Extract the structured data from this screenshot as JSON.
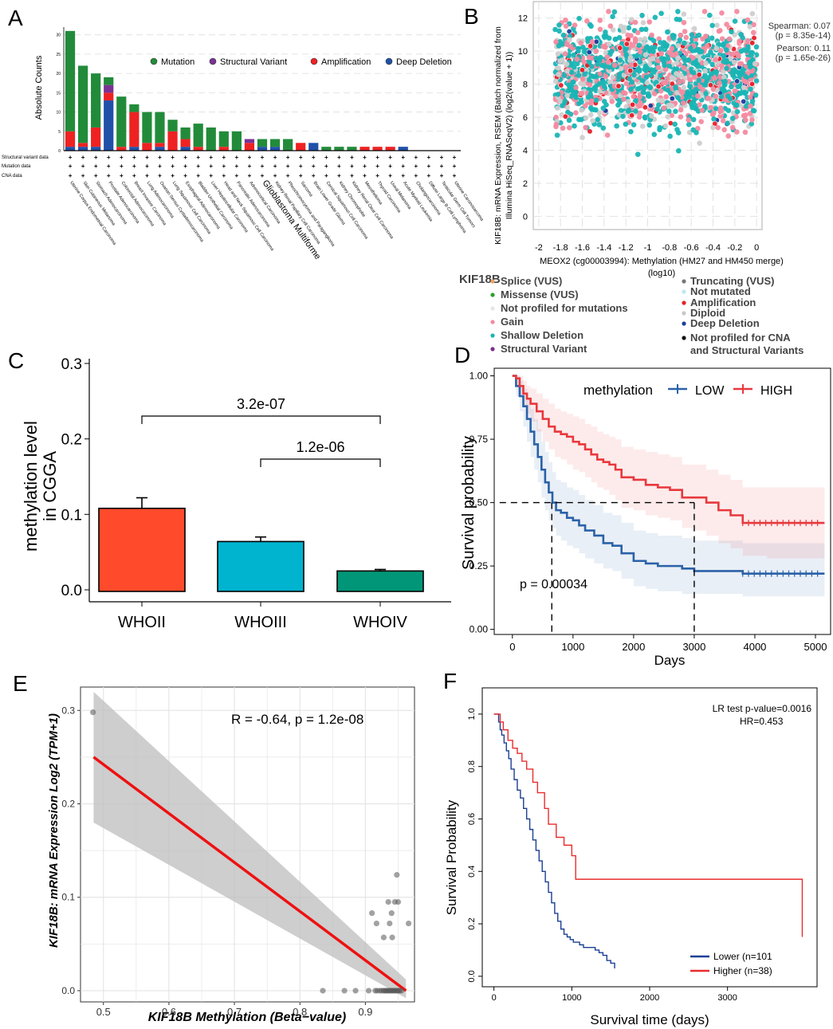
{
  "figure": {
    "panel_labels": {
      "A": "A",
      "B": "B",
      "C": "C",
      "D": "D",
      "E": "E",
      "F": "F"
    }
  },
  "panelA": {
    "chart_data": {
      "type": "bar",
      "stacked": true,
      "title": "",
      "ylabel": "Absolute Counts",
      "ylim": [
        0,
        32
      ],
      "yticks": [
        0,
        5,
        10,
        15,
        20,
        25,
        30
      ],
      "legend": [
        "Mutation",
        "Structural Variant",
        "Amplification",
        "Deep Deletion"
      ],
      "colors": {
        "Mutation": "#228b3a",
        "Structural Variant": "#7b3294",
        "Amplification": "#ee2222",
        "Deep Deletion": "#2050a8"
      },
      "row_labels": [
        "Structural variant data",
        "Mutation data",
        "CNA data"
      ],
      "highlight": "Glioblastoma Multiforme",
      "categories": [
        "Uterine Corpus Endometrial Carcinoma",
        "Skin Cutaneous Melanoma",
        "Stomach Adenocarcinoma",
        "Prostate Adenocarcinoma",
        "Colorectal Adenocarcinoma",
        "Breast Invasive Carcinoma",
        "Lung Adenocarcinoma",
        "Ovarian Serous Cystadenocarcinoma",
        "Lung Squamous Cell Carcinoma",
        "Esophageal Adenocarcinoma",
        "Bladder Urothelial Carcinoma",
        "Liver Hepatocellular Carcinoma",
        "Head and Neck Squamous Cell Carcinoma",
        "Pancreatic Adenocarcinoma",
        "Adrenocortical Carcinoma",
        "Glioblastoma Multiforme",
        "Kidney Renal Papillary Cell Carcinoma",
        "Pheochromocytoma and Paraganglioma",
        "Sarcoma",
        "Brain Lower Grade Glioma",
        "Cervical Squamous Cell Carcinoma",
        "Kidney Chromophobe",
        "Kidney Renal Clear Cell Carcinoma",
        "Mesothelioma",
        "Thyroid Carcinoma",
        "Uveal Melanoma",
        "Acute Myeloid Leukemia",
        "Cholangiocarcinoma",
        "Diffuse Large B-Cell Lymphoma",
        "Testicular Germ Cell Tumors",
        "Uterine Carcinosarcoma"
      ],
      "series": [
        {
          "name": "Deep Deletion",
          "values": [
            1,
            1,
            1,
            13,
            0,
            1,
            0,
            1,
            0,
            1,
            0,
            0,
            0,
            0,
            0,
            1,
            1,
            0,
            0,
            2,
            0,
            0,
            0,
            0,
            0,
            0,
            1,
            0,
            0,
            0,
            0
          ]
        },
        {
          "name": "Amplification",
          "values": [
            4,
            1,
            5,
            2,
            1,
            9,
            2,
            1,
            5,
            2,
            1,
            0,
            1,
            0,
            2,
            0,
            0,
            0,
            2,
            0,
            0,
            0,
            0,
            1,
            1,
            1,
            0,
            0,
            0,
            0,
            0
          ]
        },
        {
          "name": "Structural Variant",
          "values": [
            0,
            0,
            0,
            2,
            0,
            0,
            0,
            0,
            0,
            0,
            0,
            0,
            0,
            0,
            1,
            0,
            0,
            0,
            0,
            0,
            0,
            0,
            0,
            0,
            0,
            0,
            0,
            0,
            0,
            0,
            0
          ]
        },
        {
          "name": "Mutation",
          "values": [
            26,
            20,
            14,
            2,
            13,
            2,
            8,
            8,
            3,
            3,
            6,
            6,
            4,
            5,
            0,
            2,
            2,
            3,
            0,
            0,
            1,
            1,
            1,
            0,
            0,
            0,
            0,
            0,
            0,
            0,
            0
          ]
        }
      ]
    }
  },
  "panelB": {
    "chart_data": {
      "type": "scatter",
      "xlabel": "MEOX2 (cg00003994): Methylation (HM27 and HM450 merge) (log10)",
      "ylabel": "KIF18B: mRNA Expression, RSEM (Batch normalized from Illumina HiSeq_RNASeqV2) (log2(value + 1))",
      "xlim": [
        -2.05,
        0.05
      ],
      "ylim": [
        -0.8,
        13
      ],
      "xticks": [
        "-2",
        "-1.8",
        "-1.6",
        "-1.4",
        "-1.2",
        "-1",
        "-0.8",
        "-0.6",
        "-0.4",
        "-0.2",
        "0"
      ],
      "yticks": [
        "0",
        "2",
        "4",
        "6",
        "8",
        "10",
        "12"
      ],
      "stats": {
        "spearman": "Spearman: 0.07",
        "spearman_p": "(p = 8.35e-14)",
        "pearson": "Pearson: 0.11",
        "pearson_p": "(p = 1.65e-26)"
      },
      "note": "Dense scatter of thousands of samples between x≈-1.9 and 0 and y≈0 to 12.5, colored by KIF18B copy-number / mutation status."
    },
    "legend_title": "KIF18B",
    "legend_left": [
      "Splice (VUS)",
      "Missense (VUS)",
      "Not profiled for mutations",
      "Gain",
      "Shallow Deletion",
      "Structural Variant"
    ],
    "legend_right": [
      "Truncating (VUS)",
      "Not mutated",
      "Amplification",
      "Diploid",
      "Deep Deletion",
      "Not profiled for CNA",
      "and Structural Variants"
    ],
    "legend_left_colors": [
      "#e8a36a",
      "#2ca02c",
      "#e6e6e6",
      "#f48aa0",
      "#19b5b5",
      "#7b2f8e"
    ],
    "legend_right_colors": [
      "#777777",
      "#bfe8ee",
      "#e8202a",
      "#c8c8c8",
      "#1d3d9e",
      "#111111"
    ]
  },
  "panelC": {
    "chart_data": {
      "type": "bar",
      "ylabel": "methylation level in CGGA",
      "categories": [
        "WHOII",
        "WHOIII",
        "WHOIV"
      ],
      "values": [
        0.108,
        0.064,
        0.025
      ],
      "errors": [
        0.014,
        0.006,
        0.002
      ],
      "ylim": [
        -0.005,
        0.3
      ],
      "yticks": [
        "0.0",
        "0.1",
        "0.2",
        "0.3"
      ],
      "colors": [
        "#ff4b2b",
        "#00b3cf",
        "#009677"
      ],
      "comparisons": [
        {
          "from": "WHOII",
          "to": "WHOIV",
          "label": "3.2e-07"
        },
        {
          "from": "WHOIII",
          "to": "WHOIV",
          "label": "1.2e-06"
        }
      ]
    }
  },
  "panelD": {
    "chart_data": {
      "type": "line",
      "xlabel": "Days",
      "ylabel": "Survival probability",
      "xlim": [
        -300,
        5250
      ],
      "ylim": [
        -0.02,
        1.03
      ],
      "xticks": [
        "0",
        "1000",
        "2000",
        "3000",
        "4000",
        "5000"
      ],
      "yticks": [
        "0.00",
        "0.25",
        "0.50",
        "0.75",
        "1.00"
      ],
      "legend_title": "methylation",
      "pvalue": "p = 0.00034",
      "median_lines": [
        650,
        3000
      ],
      "series": [
        {
          "name": "LOW",
          "color": "#2a62a8",
          "x": [
            0,
            60,
            120,
            180,
            240,
            300,
            360,
            420,
            480,
            540,
            600,
            660,
            720,
            800,
            900,
            1000,
            1100,
            1200,
            1350,
            1500,
            1650,
            1800,
            2000,
            2200,
            2400,
            2600,
            2800,
            3000,
            3200,
            3500,
            3800,
            4200,
            4600,
            5150
          ],
          "y": [
            1.0,
            0.96,
            0.92,
            0.88,
            0.83,
            0.78,
            0.73,
            0.68,
            0.63,
            0.58,
            0.54,
            0.5,
            0.47,
            0.46,
            0.44,
            0.43,
            0.41,
            0.39,
            0.37,
            0.34,
            0.33,
            0.3,
            0.27,
            0.26,
            0.25,
            0.25,
            0.24,
            0.23,
            0.23,
            0.23,
            0.22,
            0.22,
            0.22,
            0.22
          ],
          "ci_lower": [
            1.0,
            0.92,
            0.86,
            0.8,
            0.74,
            0.68,
            0.63,
            0.58,
            0.52,
            0.47,
            0.43,
            0.4,
            0.37,
            0.35,
            0.33,
            0.32,
            0.3,
            0.28,
            0.26,
            0.24,
            0.23,
            0.2,
            0.17,
            0.16,
            0.15,
            0.15,
            0.14,
            0.14,
            0.14,
            0.14,
            0.13,
            0.13,
            0.13,
            0.13
          ],
          "ci_upper": [
            1.0,
            1.0,
            0.98,
            0.95,
            0.91,
            0.87,
            0.83,
            0.79,
            0.74,
            0.7,
            0.66,
            0.62,
            0.59,
            0.58,
            0.56,
            0.55,
            0.53,
            0.51,
            0.49,
            0.46,
            0.45,
            0.42,
            0.39,
            0.38,
            0.37,
            0.37,
            0.36,
            0.35,
            0.35,
            0.35,
            0.34,
            0.34,
            0.34,
            0.34
          ]
        },
        {
          "name": "HIGH",
          "color": "#e8383d",
          "x": [
            0,
            60,
            120,
            180,
            240,
            300,
            400,
            500,
            600,
            700,
            800,
            900,
            1000,
            1100,
            1200,
            1300,
            1400,
            1500,
            1600,
            1700,
            1800,
            1900,
            2000,
            2200,
            2400,
            2600,
            2800,
            3000,
            3200,
            3400,
            3600,
            3800,
            4200,
            4600,
            5150
          ],
          "y": [
            1.0,
            0.99,
            0.96,
            0.93,
            0.91,
            0.89,
            0.86,
            0.83,
            0.8,
            0.78,
            0.77,
            0.76,
            0.74,
            0.73,
            0.71,
            0.69,
            0.67,
            0.66,
            0.65,
            0.63,
            0.6,
            0.6,
            0.59,
            0.57,
            0.56,
            0.55,
            0.52,
            0.52,
            0.5,
            0.47,
            0.45,
            0.42,
            0.42,
            0.42,
            0.42
          ],
          "ci_lower": [
            1.0,
            0.96,
            0.92,
            0.88,
            0.85,
            0.82,
            0.78,
            0.74,
            0.71,
            0.68,
            0.67,
            0.65,
            0.63,
            0.62,
            0.6,
            0.58,
            0.56,
            0.55,
            0.53,
            0.51,
            0.48,
            0.48,
            0.47,
            0.45,
            0.44,
            0.43,
            0.4,
            0.39,
            0.37,
            0.34,
            0.32,
            0.29,
            0.28,
            0.28,
            0.28
          ],
          "ci_upper": [
            1.0,
            1.0,
            1.0,
            0.98,
            0.96,
            0.95,
            0.93,
            0.91,
            0.89,
            0.87,
            0.86,
            0.85,
            0.84,
            0.83,
            0.81,
            0.8,
            0.78,
            0.77,
            0.76,
            0.75,
            0.72,
            0.72,
            0.71,
            0.7,
            0.69,
            0.68,
            0.65,
            0.65,
            0.63,
            0.61,
            0.59,
            0.56,
            0.56,
            0.56,
            0.56
          ]
        }
      ]
    }
  },
  "panelE": {
    "chart_data": {
      "type": "scatter",
      "xlabel": "KIF18B Methylation (Beta−value)",
      "ylabel": "KIF18B: mRNA Expression Log2 (TPM+1)",
      "xlim": [
        0.465,
        0.975
      ],
      "ylim": [
        -0.012,
        0.325
      ],
      "xticks": [
        "0.5",
        "0.6",
        "0.7",
        "0.8",
        "0.9"
      ],
      "yticks": [
        "0.0",
        "0.1",
        "0.2",
        "0.3"
      ],
      "annotation": "R = -0.64, p = 1.2e-08",
      "fit": {
        "x": [
          0.485,
          0.962
        ],
        "y": [
          0.25,
          0.0
        ]
      },
      "ci_band": {
        "x": [
          0.485,
          0.962
        ],
        "upper": [
          0.32,
          0.012
        ],
        "lower": [
          0.18,
          -0.008
        ]
      },
      "points": [
        [
          0.484,
          0.298
        ],
        [
          0.835,
          0.0
        ],
        [
          0.868,
          0.0
        ],
        [
          0.885,
          0.0
        ],
        [
          0.905,
          0.0
        ],
        [
          0.915,
          0.0
        ],
        [
          0.918,
          0.0
        ],
        [
          0.922,
          0.0
        ],
        [
          0.925,
          0.0
        ],
        [
          0.928,
          0.0
        ],
        [
          0.93,
          0.0
        ],
        [
          0.932,
          0.0
        ],
        [
          0.934,
          0.0
        ],
        [
          0.936,
          0.0
        ],
        [
          0.938,
          0.0
        ],
        [
          0.94,
          0.0
        ],
        [
          0.942,
          0.0
        ],
        [
          0.944,
          0.0
        ],
        [
          0.946,
          0.0
        ],
        [
          0.948,
          0.0
        ],
        [
          0.95,
          0.0
        ],
        [
          0.952,
          0.0
        ],
        [
          0.955,
          0.0
        ],
        [
          0.948,
          0.124
        ],
        [
          0.935,
          0.095
        ],
        [
          0.945,
          0.095
        ],
        [
          0.95,
          0.095
        ],
        [
          0.91,
          0.083
        ],
        [
          0.94,
          0.083
        ],
        [
          0.917,
          0.072
        ],
        [
          0.937,
          0.072
        ],
        [
          0.966,
          0.072
        ],
        [
          0.928,
          0.057
        ],
        [
          0.941,
          0.057
        ]
      ]
    }
  },
  "panelF": {
    "chart_data": {
      "type": "line",
      "xlabel": "Survival time (days)",
      "ylabel": "Survival Probability",
      "xlim": [
        -150,
        4150
      ],
      "ylim": [
        -0.04,
        1.1
      ],
      "xticks": [
        "0",
        "1000",
        "2000",
        "3000"
      ],
      "yticks": [
        "0.0",
        "0.2",
        "0.4",
        "0.6",
        "0.8",
        "1.0"
      ],
      "stats": {
        "lr": "LR test p-value=0.0016",
        "hr": "HR=0.453"
      },
      "series": [
        {
          "name": "Lower (n=101",
          "color": "#1a3f94",
          "x": [
            0,
            40,
            60,
            80,
            100,
            130,
            160,
            190,
            220,
            260,
            300,
            340,
            380,
            420,
            460,
            500,
            540,
            580,
            620,
            660,
            700,
            740,
            780,
            820,
            860,
            900,
            940,
            980,
            1020,
            1060,
            1100,
            1150,
            1200,
            1300,
            1350,
            1400,
            1450,
            1500,
            1550
          ],
          "y": [
            1.0,
            1.0,
            0.97,
            0.94,
            0.92,
            0.89,
            0.86,
            0.83,
            0.79,
            0.75,
            0.71,
            0.68,
            0.64,
            0.6,
            0.56,
            0.52,
            0.48,
            0.44,
            0.4,
            0.36,
            0.32,
            0.28,
            0.24,
            0.21,
            0.18,
            0.16,
            0.15,
            0.14,
            0.13,
            0.13,
            0.12,
            0.11,
            0.11,
            0.1,
            0.09,
            0.08,
            0.06,
            0.05,
            0.03
          ]
        },
        {
          "name": "Higher (n=38)",
          "color": "#ea2c2c",
          "x": [
            0,
            80,
            120,
            180,
            240,
            300,
            360,
            420,
            500,
            560,
            650,
            700,
            800,
            900,
            1000,
            1050,
            1200,
            2000,
            3000,
            3700,
            3960
          ],
          "y": [
            1.0,
            0.97,
            0.94,
            0.9,
            0.87,
            0.85,
            0.82,
            0.79,
            0.74,
            0.7,
            0.64,
            0.58,
            0.53,
            0.5,
            0.46,
            0.37,
            0.37,
            0.37,
            0.37,
            0.37,
            0.15
          ]
        }
      ]
    }
  }
}
